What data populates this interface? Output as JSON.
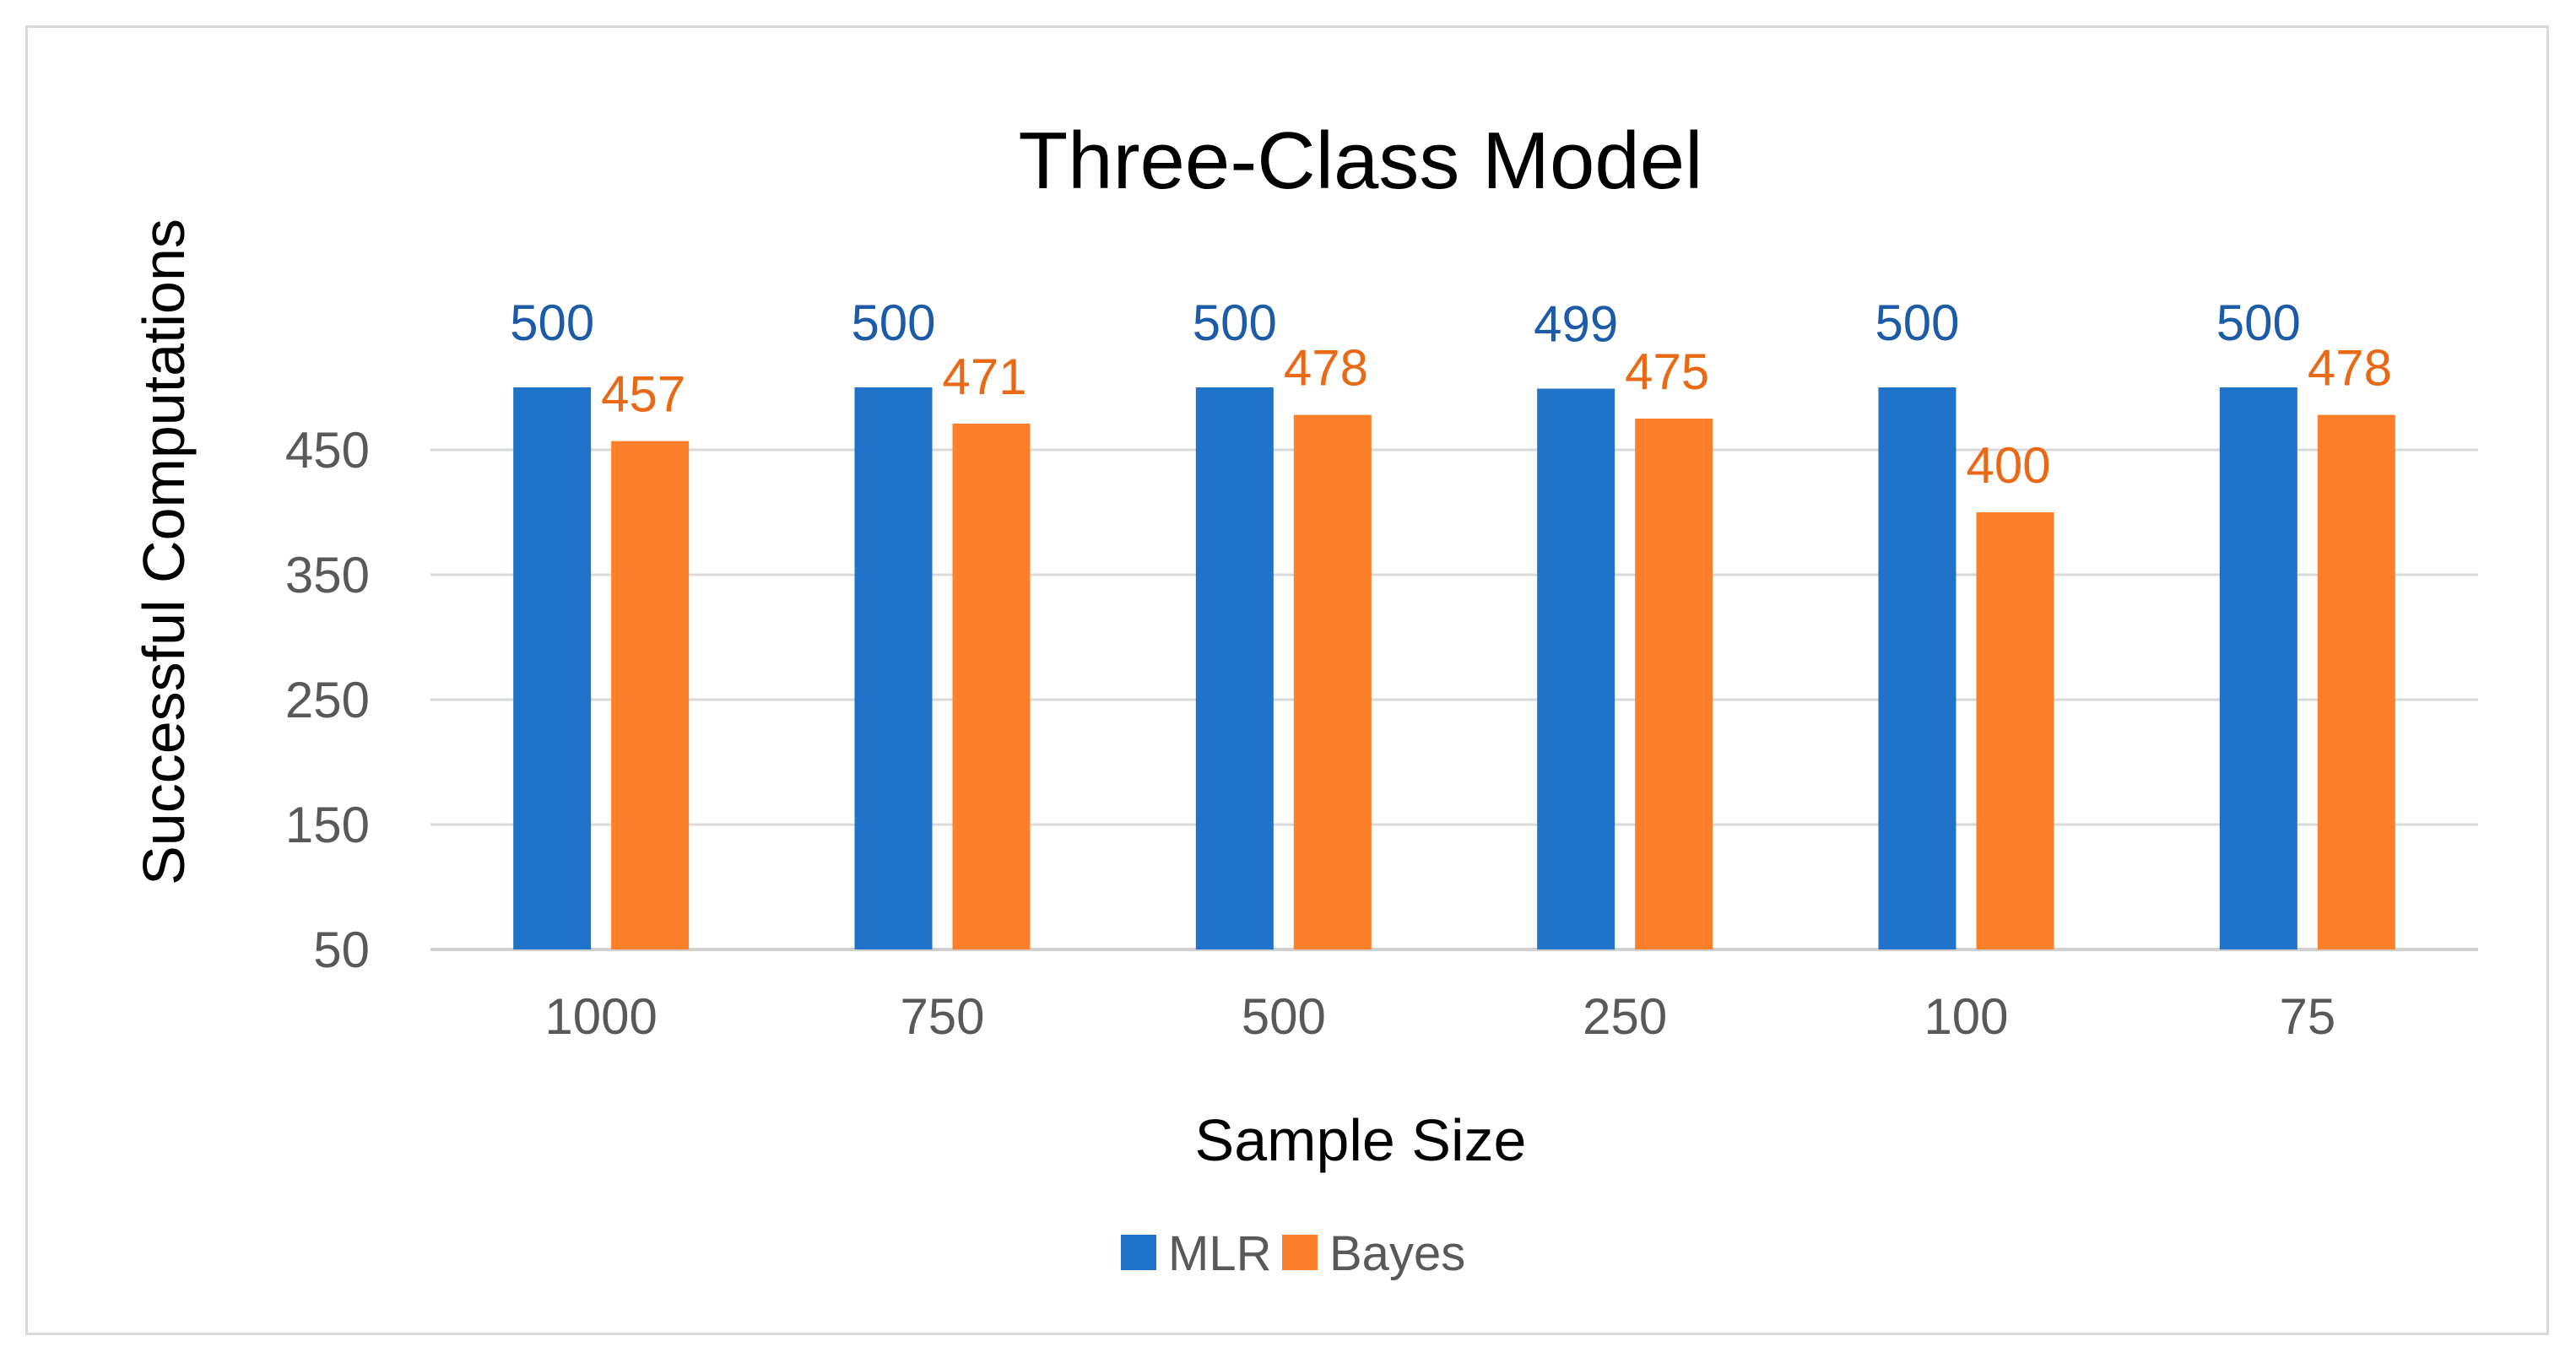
{
  "chart_data": {
    "type": "bar",
    "title": "Three-Class Model",
    "xlabel": "Sample Size",
    "ylabel": "Successful Computations",
    "categories": [
      "1000",
      "750",
      "500",
      "250",
      "100",
      "75"
    ],
    "series": [
      {
        "name": "MLR",
        "color": "#1f73c8",
        "values": [
          500,
          500,
          500,
          499,
          500,
          500
        ]
      },
      {
        "name": "Bayes",
        "color": "#fe7f2a",
        "values": [
          457,
          471,
          478,
          475,
          400,
          478
        ]
      }
    ],
    "yticks": [
      50,
      150,
      250,
      350,
      450
    ],
    "ylim": [
      50,
      550
    ],
    "grid": true,
    "legend_position": "bottom",
    "data_labels": true
  }
}
